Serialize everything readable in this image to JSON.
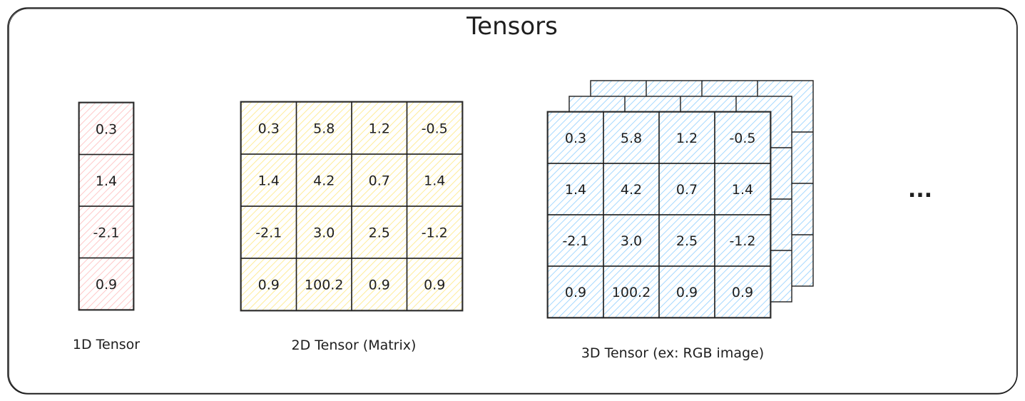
{
  "title": "Tensors",
  "colors": {
    "stroke": "#1e1e1e",
    "fill_1d": "#ffc9c9",
    "fill_2d": "#ffec99",
    "fill_3d": "#a5d8ff"
  },
  "tensor_1d": {
    "caption": "1D Tensor",
    "values": [
      "0.3",
      "1.4",
      "-2.1",
      "0.9"
    ]
  },
  "tensor_2d": {
    "caption": "2D Tensor (Matrix)",
    "rows": [
      [
        "0.3",
        "5.8",
        "1.2",
        "-0.5"
      ],
      [
        "1.4",
        "4.2",
        "0.7",
        "1.4"
      ],
      [
        "-2.1",
        "3.0",
        "2.5",
        "-1.2"
      ],
      [
        "0.9",
        "100.2",
        "0.9",
        "0.9"
      ]
    ]
  },
  "tensor_3d": {
    "caption": "3D Tensor (ex: RGB image)",
    "layers": 3,
    "rows": [
      [
        "0.3",
        "5.8",
        "1.2",
        "-0.5"
      ],
      [
        "1.4",
        "4.2",
        "0.7",
        "1.4"
      ],
      [
        "-2.1",
        "3.0",
        "2.5",
        "-1.2"
      ],
      [
        "0.9",
        "100.2",
        "0.9",
        "0.9"
      ]
    ]
  },
  "ellipsis": "..."
}
